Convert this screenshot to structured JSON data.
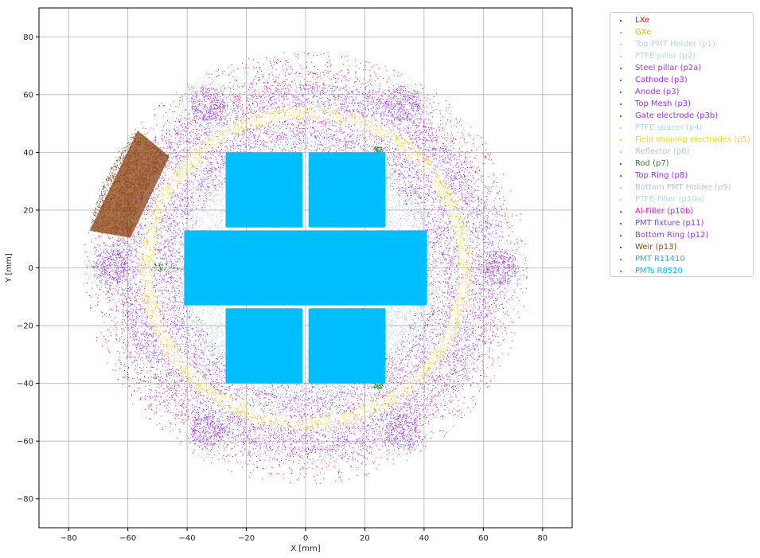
{
  "chart_data": {
    "type": "scatter",
    "xlabel": "X [mm]",
    "ylabel": "Y [mm]",
    "xlim": [
      -90,
      90
    ],
    "ylim": [
      -90,
      90
    ],
    "xticks": [
      -80,
      -60,
      -40,
      -20,
      0,
      20,
      40,
      60,
      80
    ],
    "yticks": [
      -80,
      -60,
      -40,
      -20,
      0,
      20,
      40,
      60,
      80
    ],
    "xtick_labels": [
      "−80",
      "−60",
      "−40",
      "−20",
      "0",
      "20",
      "40",
      "60",
      "80"
    ],
    "ytick_labels": [
      "−80",
      "−60",
      "−40",
      "−20",
      "0",
      "20",
      "40",
      "60",
      "80"
    ],
    "grid": true,
    "legend_position": "outside-right",
    "series": [
      {
        "name": "LXe",
        "color": "#ff0000",
        "shape": "annulus",
        "r_inner": 62,
        "r_outer": 75
      },
      {
        "name": "GXe",
        "color": "#ffa500",
        "shape": "annulus",
        "r_inner": 54,
        "r_outer": 56
      },
      {
        "name": "Top PMT Holder (p1)",
        "color": "#add8e6",
        "shape": "rect",
        "x": [
          -40,
          40
        ],
        "y": [
          -40,
          40
        ]
      },
      {
        "name": "PTFE pillar (p2)",
        "color": "#add8e6",
        "shape": "blobs",
        "centers": [
          [
            -33,
            57
          ],
          [
            33,
            57
          ],
          [
            -66,
            0
          ],
          [
            66,
            0
          ],
          [
            -33,
            -57
          ],
          [
            33,
            -57
          ]
        ],
        "radius": 9
      },
      {
        "name": "Steel pillar (p2a)",
        "color": "#9b30ff",
        "shape": "blobs",
        "centers": [
          [
            -33,
            57
          ],
          [
            33,
            57
          ],
          [
            -66,
            0
          ],
          [
            66,
            0
          ],
          [
            -33,
            -57
          ],
          [
            33,
            -57
          ]
        ],
        "radius": 6
      },
      {
        "name": "Cathode (p3)",
        "color": "#9b30ff",
        "shape": "annulus",
        "r_inner": 56,
        "r_outer": 62
      },
      {
        "name": "Anode (p3)",
        "color": "#9b30ff",
        "shape": "annulus",
        "r_inner": 45,
        "r_outer": 52
      },
      {
        "name": "Top Mesh (p3)",
        "color": "#9b30ff",
        "shape": "annulus",
        "r_inner": 45,
        "r_outer": 52
      },
      {
        "name": "Gate electrode (p3b)",
        "color": "#9b30ff",
        "shape": "annulus",
        "r_inner": 56,
        "r_outer": 60
      },
      {
        "name": "PTFE spacer (p4)",
        "color": "#add8e6",
        "shape": "annulus",
        "r_inner": 40,
        "r_outer": 46
      },
      {
        "name": "Field shaping electrodes (p5)",
        "color": "#ffd700",
        "shape": "annulus",
        "r_inner": 51,
        "r_outer": 54
      },
      {
        "name": "Reflector (p6)",
        "color": "#b0c4de",
        "shape": "annulus",
        "r_inner": 38,
        "r_outer": 44
      },
      {
        "name": "Rod (p7)",
        "color": "#228b22",
        "shape": "rects",
        "rects": [
          [
            -51,
            -43,
            -1.5,
            1.5
          ],
          [
            23,
            26,
            40,
            42
          ],
          [
            23,
            26,
            -42,
            -40
          ]
        ]
      },
      {
        "name": "Top Ring (p8)",
        "color": "#9b30ff",
        "shape": "annulus",
        "r_inner": 60,
        "r_outer": 64
      },
      {
        "name": "Bottom PMT Holder (p9)",
        "color": "#b0c4de",
        "shape": "annulus",
        "r_inner": 30,
        "r_outer": 40
      },
      {
        "name": "PTFE-Filler (p10a)",
        "color": "#add8e6",
        "shape": "annulus",
        "r_inner": 28,
        "r_outer": 38
      },
      {
        "name": "Al-Filler (p10b)",
        "color": "#ff00ff",
        "shape": "annulus",
        "r_inner": 45,
        "r_outer": 72
      },
      {
        "name": "PMT fixture (p11)",
        "color": "#9b30ff",
        "shape": "annulus",
        "r_inner": 40,
        "r_outer": 46
      },
      {
        "name": "Bottom Ring (p12)",
        "color": "#9b30ff",
        "shape": "annulus",
        "r_inner": 62,
        "r_outer": 68
      },
      {
        "name": "Weir (p13)",
        "color": "#8b4513",
        "shape": "sector",
        "r_inner": 60,
        "r_outer": 74,
        "angle_start": 140,
        "angle_end": 170
      },
      {
        "name": "PMT R11410",
        "color": "#00bfff",
        "shape": "rects",
        "rects": [
          [
            -27,
            -1,
            14,
            40
          ],
          [
            1,
            27,
            14,
            40
          ],
          [
            -27,
            -1,
            -40,
            -14
          ],
          [
            1,
            27,
            -40,
            -14
          ]
        ]
      },
      {
        "name": "PMTs R8520",
        "color": "#00bfff",
        "shape": "rects",
        "rects": [
          [
            -41,
            41,
            -13,
            13
          ]
        ]
      }
    ],
    "legend_text_colors": [
      "#ff0000",
      "#ffa500",
      "#add8e6",
      "#add8e6",
      "#9b30ff",
      "#9b30ff",
      "#9b30ff",
      "#9b30ff",
      "#9b30ff",
      "#add8e6",
      "#ffd700",
      "#b0c4de",
      "#228b22",
      "#9b30ff",
      "#b0c4de",
      "#add8e6",
      "#ff00ff",
      "#9b30ff",
      "#9b30ff",
      "#8b4513",
      "#00bfff",
      "#00bfff"
    ]
  }
}
